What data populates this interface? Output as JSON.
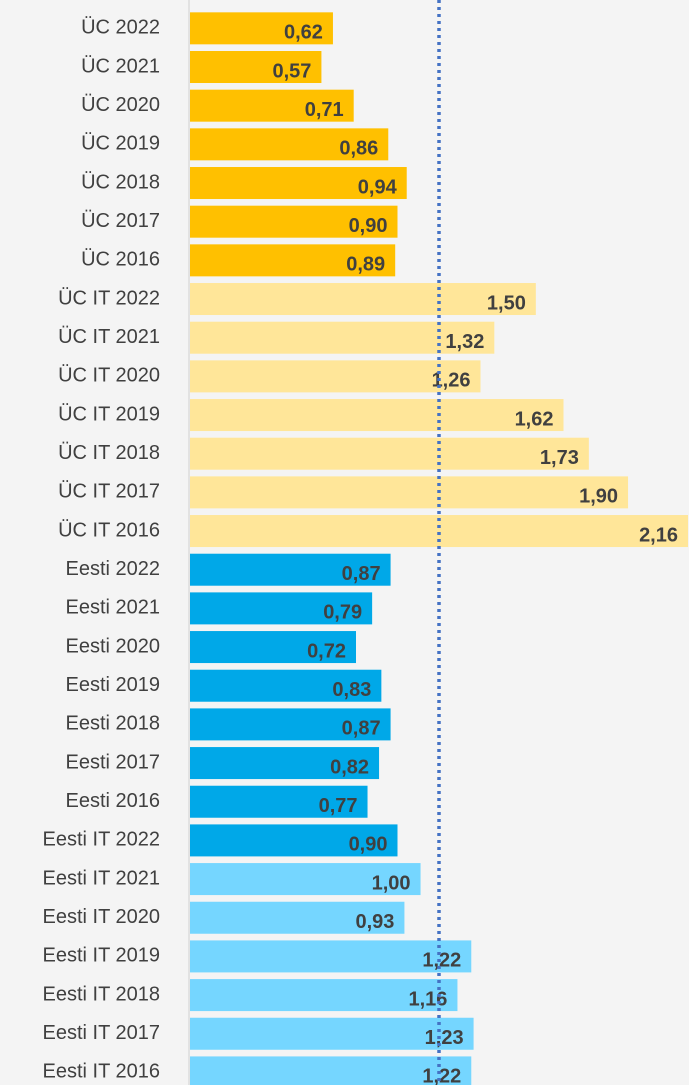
{
  "chart_data": {
    "type": "barh",
    "categories": [
      "ÜC 2022",
      "ÜC 2021",
      "ÜC 2020",
      "ÜC 2019",
      "ÜC 2018",
      "ÜC 2017",
      "ÜC 2016",
      "ÜC IT 2022",
      "ÜC IT 2021",
      "ÜC IT 2020",
      "ÜC IT 2019",
      "ÜC IT 2018",
      "ÜC IT 2017",
      "ÜC IT 2016",
      "Eesti 2022",
      "Eesti 2021",
      "Eesti 2020",
      "Eesti 2019",
      "Eesti 2018",
      "Eesti 2017",
      "Eesti 2016",
      "Eesti IT 2022",
      "Eesti IT 2021",
      "Eesti IT 2020",
      "Eesti IT 2019",
      "Eesti IT 2018",
      "Eesti IT 2017",
      "Eesti IT 2016"
    ],
    "values": [
      0.62,
      0.57,
      0.71,
      0.86,
      0.94,
      0.9,
      0.89,
      1.5,
      1.32,
      1.26,
      1.62,
      1.73,
      1.9,
      2.16,
      0.87,
      0.79,
      0.72,
      0.83,
      0.87,
      0.82,
      0.77,
      0.9,
      1.0,
      0.93,
      1.22,
      1.16,
      1.23,
      1.22
    ],
    "value_labels": [
      "0,62",
      "0,57",
      "0,71",
      "0,86",
      "0,94",
      "0,90",
      "0,89",
      "1,50",
      "1,32",
      "1,26",
      "1,62",
      "1,73",
      "1,90",
      "2,16",
      "0,87",
      "0,79",
      "0,72",
      "0,83",
      "0,87",
      "0,82",
      "0,77",
      "0,90",
      "1,00",
      "0,93",
      "1,22",
      "1,16",
      "1,23",
      "1,22"
    ],
    "colors": [
      "#ffc000",
      "#ffc000",
      "#ffc000",
      "#ffc000",
      "#ffc000",
      "#ffc000",
      "#ffc000",
      "#ffe699",
      "#ffe699",
      "#ffe699",
      "#ffe699",
      "#ffe699",
      "#ffe699",
      "#ffe699",
      "#00a8e8",
      "#00a8e8",
      "#00a8e8",
      "#00a8e8",
      "#00a8e8",
      "#00a8e8",
      "#00a8e8",
      "#00a8e8",
      "#75d6ff",
      "#75d6ff",
      "#75d6ff",
      "#75d6ff",
      "#75d6ff",
      "#75d6ff"
    ],
    "xlim": [
      0,
      2.16
    ],
    "reference_line": {
      "value": 1.08,
      "color": "#4472c4"
    }
  }
}
